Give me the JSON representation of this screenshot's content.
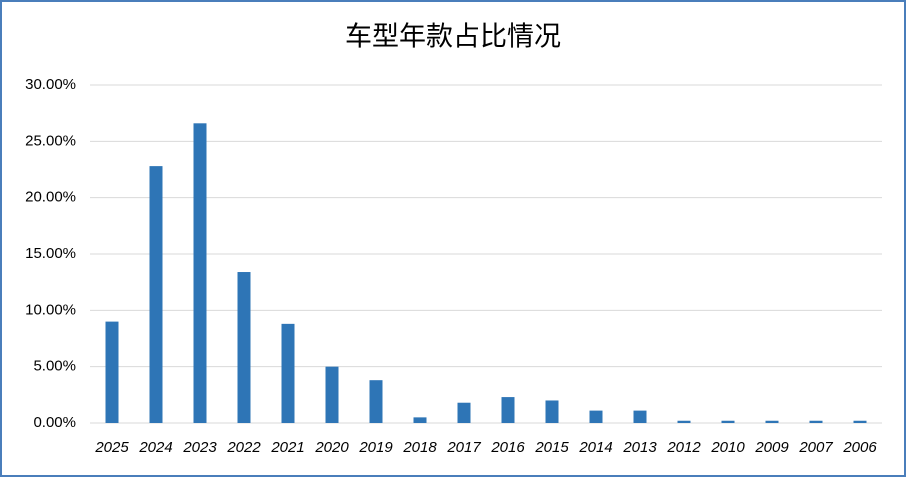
{
  "chart_data": {
    "type": "bar",
    "title": "车型年款占比情况",
    "categories": [
      "2025",
      "2024",
      "2023",
      "2022",
      "2021",
      "2020",
      "2019",
      "2018",
      "2017",
      "2016",
      "2015",
      "2014",
      "2013",
      "2012",
      "2010",
      "2009",
      "2007",
      "2006"
    ],
    "values": [
      9.0,
      22.8,
      26.6,
      13.4,
      8.8,
      5.0,
      3.8,
      0.5,
      1.8,
      2.3,
      2.0,
      1.1,
      1.1,
      0.2,
      0.2,
      0.2,
      0.2,
      0.2
    ],
    "color": "#2e75b6",
    "ylim": [
      0,
      30
    ],
    "yticks": [
      {
        "value": 0,
        "label": "0.00%"
      },
      {
        "value": 5,
        "label": "5.00%"
      },
      {
        "value": 10,
        "label": "10.00%"
      },
      {
        "value": 15,
        "label": "15.00%"
      },
      {
        "value": 20,
        "label": "20.00%"
      },
      {
        "value": 25,
        "label": "25.00%"
      },
      {
        "value": 30,
        "label": "30.00%"
      }
    ],
    "grid": true
  }
}
